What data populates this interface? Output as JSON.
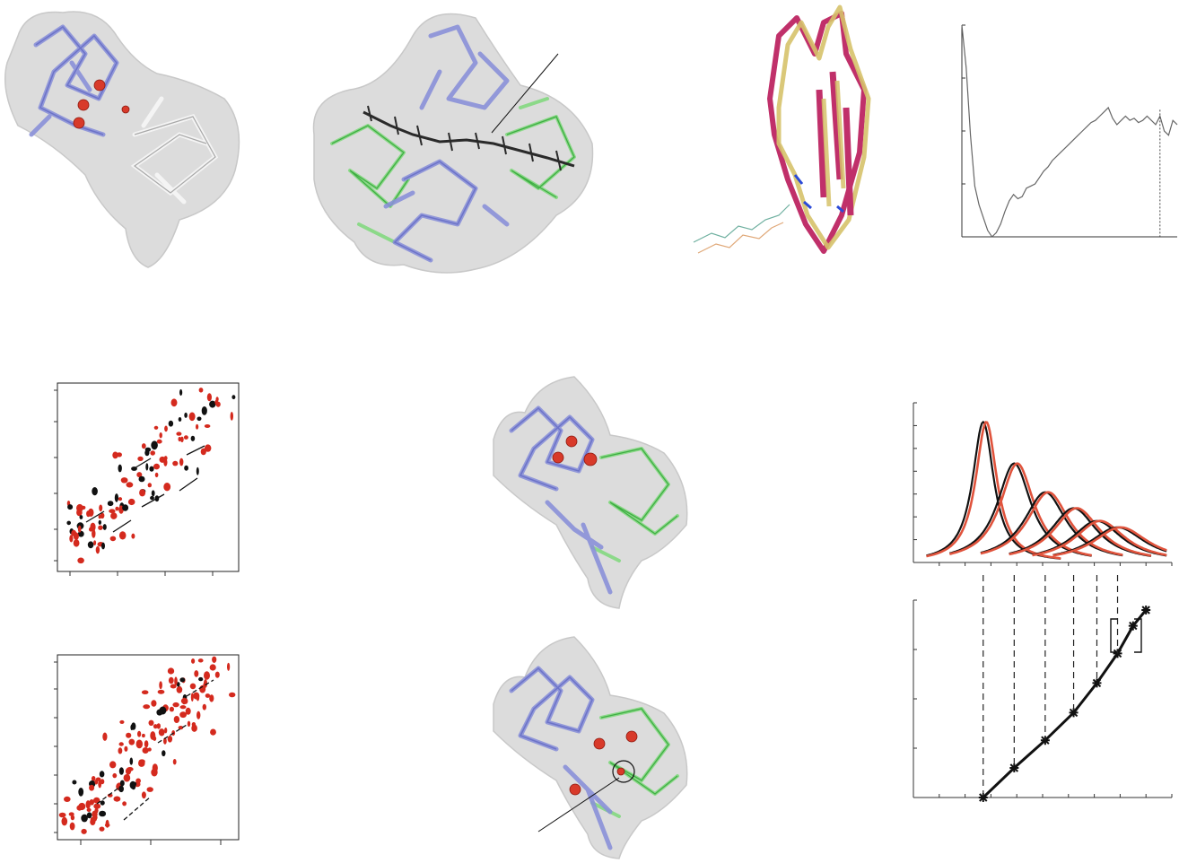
{
  "figure": {
    "panels": [
      {
        "id": "structure-domain-surface",
        "kind": "protein surface with cartoon"
      },
      {
        "id": "structure-complex-with-ligand",
        "kind": "protein complex with bound chain"
      },
      {
        "id": "structure-overlay",
        "kind": "superposed cartoons"
      },
      {
        "id": "profile-curve",
        "kind": "unlabeled line profile"
      },
      {
        "id": "nmr-spectrum-top",
        "kind": "2D spectrum overlay"
      },
      {
        "id": "nmr-spectrum-bottom",
        "kind": "2D spectrum overlay"
      },
      {
        "id": "structure-complex-top",
        "kind": "protein complex"
      },
      {
        "id": "structure-complex-bottom",
        "kind": "protein complex"
      },
      {
        "id": "titration-peaks",
        "kind": "fitted peak profiles"
      },
      {
        "id": "titration-curve",
        "kind": "binding curve"
      }
    ]
  },
  "colors": {
    "blue_domain": "#8a90d8",
    "green_domain": "#7ed87a",
    "surface": "#dcdcdc",
    "highlight_atom": "#d83a2a",
    "overlay_magenta": "#c0306a",
    "overlay_gold": "#d6c26a",
    "spectrum_red": "#d42a1e",
    "spectrum_black": "#111111",
    "fit_red": "#e0533c"
  },
  "chart_data": [
    {
      "type": "line",
      "panel": "profile-curve",
      "title": "",
      "xlabel": "",
      "ylabel": "",
      "xlim": [
        0,
        100
      ],
      "ylim": [
        0,
        100
      ],
      "y_ticks": 5,
      "x": [
        0,
        2,
        4,
        6,
        8,
        10,
        12,
        14,
        16,
        18,
        20,
        22,
        24,
        26,
        28,
        30,
        32,
        34,
        36,
        38,
        40,
        42,
        44,
        46,
        48,
        50,
        52,
        54,
        56,
        58,
        60,
        62,
        64,
        66,
        68,
        70,
        72,
        74,
        76,
        78,
        80,
        82,
        84,
        86,
        88,
        90,
        92,
        94,
        96,
        98,
        100
      ],
      "values": [
        100,
        80,
        48,
        24,
        15,
        9,
        3,
        0,
        2,
        6,
        12,
        17,
        20,
        18,
        19,
        23,
        24,
        25,
        28,
        31,
        33,
        36,
        38,
        40,
        42,
        44,
        46,
        48,
        50,
        52,
        54,
        55,
        57,
        59,
        61,
        56,
        53,
        55,
        57,
        55,
        56,
        54,
        55,
        57,
        55,
        53,
        57,
        50,
        48,
        55,
        53
      ],
      "marker_line_x": 92
    },
    {
      "type": "line",
      "panel": "titration-peaks",
      "title": "",
      "xlabel": "",
      "ylabel": "",
      "xlim": [
        0,
        100
      ],
      "ylim": [
        0,
        100
      ],
      "series": [
        {
          "center": 27,
          "height": 88,
          "width": 5
        },
        {
          "center": 39,
          "height": 62,
          "width": 8
        },
        {
          "center": 51,
          "height": 44,
          "width": 10
        },
        {
          "center": 62,
          "height": 34,
          "width": 11
        },
        {
          "center": 71,
          "height": 26,
          "width": 12
        },
        {
          "center": 79,
          "height": 22,
          "width": 13
        }
      ]
    },
    {
      "type": "scatter",
      "panel": "titration-curve",
      "title": "",
      "xlabel": "",
      "ylabel": "",
      "xlim": [
        0,
        100
      ],
      "ylim": [
        0,
        100
      ],
      "x": [
        27,
        39,
        51,
        62,
        71,
        79,
        85,
        90
      ],
      "values": [
        0,
        15,
        29,
        43,
        58,
        73,
        87,
        95
      ]
    }
  ]
}
